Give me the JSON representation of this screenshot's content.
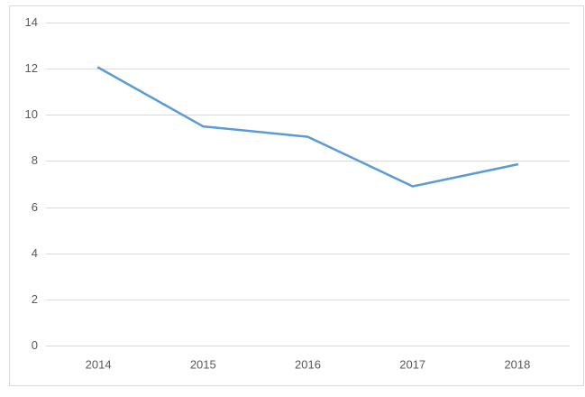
{
  "chart_data": {
    "type": "line",
    "categories": [
      "2014",
      "2015",
      "2016",
      "2017",
      "2018"
    ],
    "values": [
      12.05,
      9.5,
      9.05,
      6.9,
      7.85
    ],
    "color": "#5b9bd5",
    "ylim": [
      0,
      14
    ],
    "yticks": [
      0,
      2,
      4,
      6,
      8,
      10,
      12,
      14
    ],
    "grid": true
  }
}
